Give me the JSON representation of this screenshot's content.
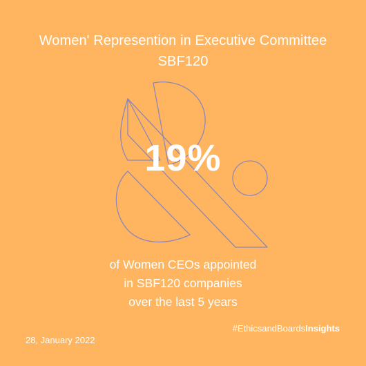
{
  "title": {
    "line1": "Women' Represention in Executive Committee",
    "line2": "SBF120"
  },
  "stat": {
    "value": "19%"
  },
  "description": {
    "line1": "of Women CEOs appointed",
    "line2": "in SBF120 companies",
    "line3": "over the last 5 years"
  },
  "hashtag": {
    "prefix": "#EthicsandBoards",
    "suffix": "Insights"
  },
  "date": "28, January 2022",
  "colors": {
    "background": "#FFB560",
    "text": "#FFFFFF",
    "outline": "#8E86B8"
  },
  "icons": [
    "ampersand-logo-outline"
  ]
}
